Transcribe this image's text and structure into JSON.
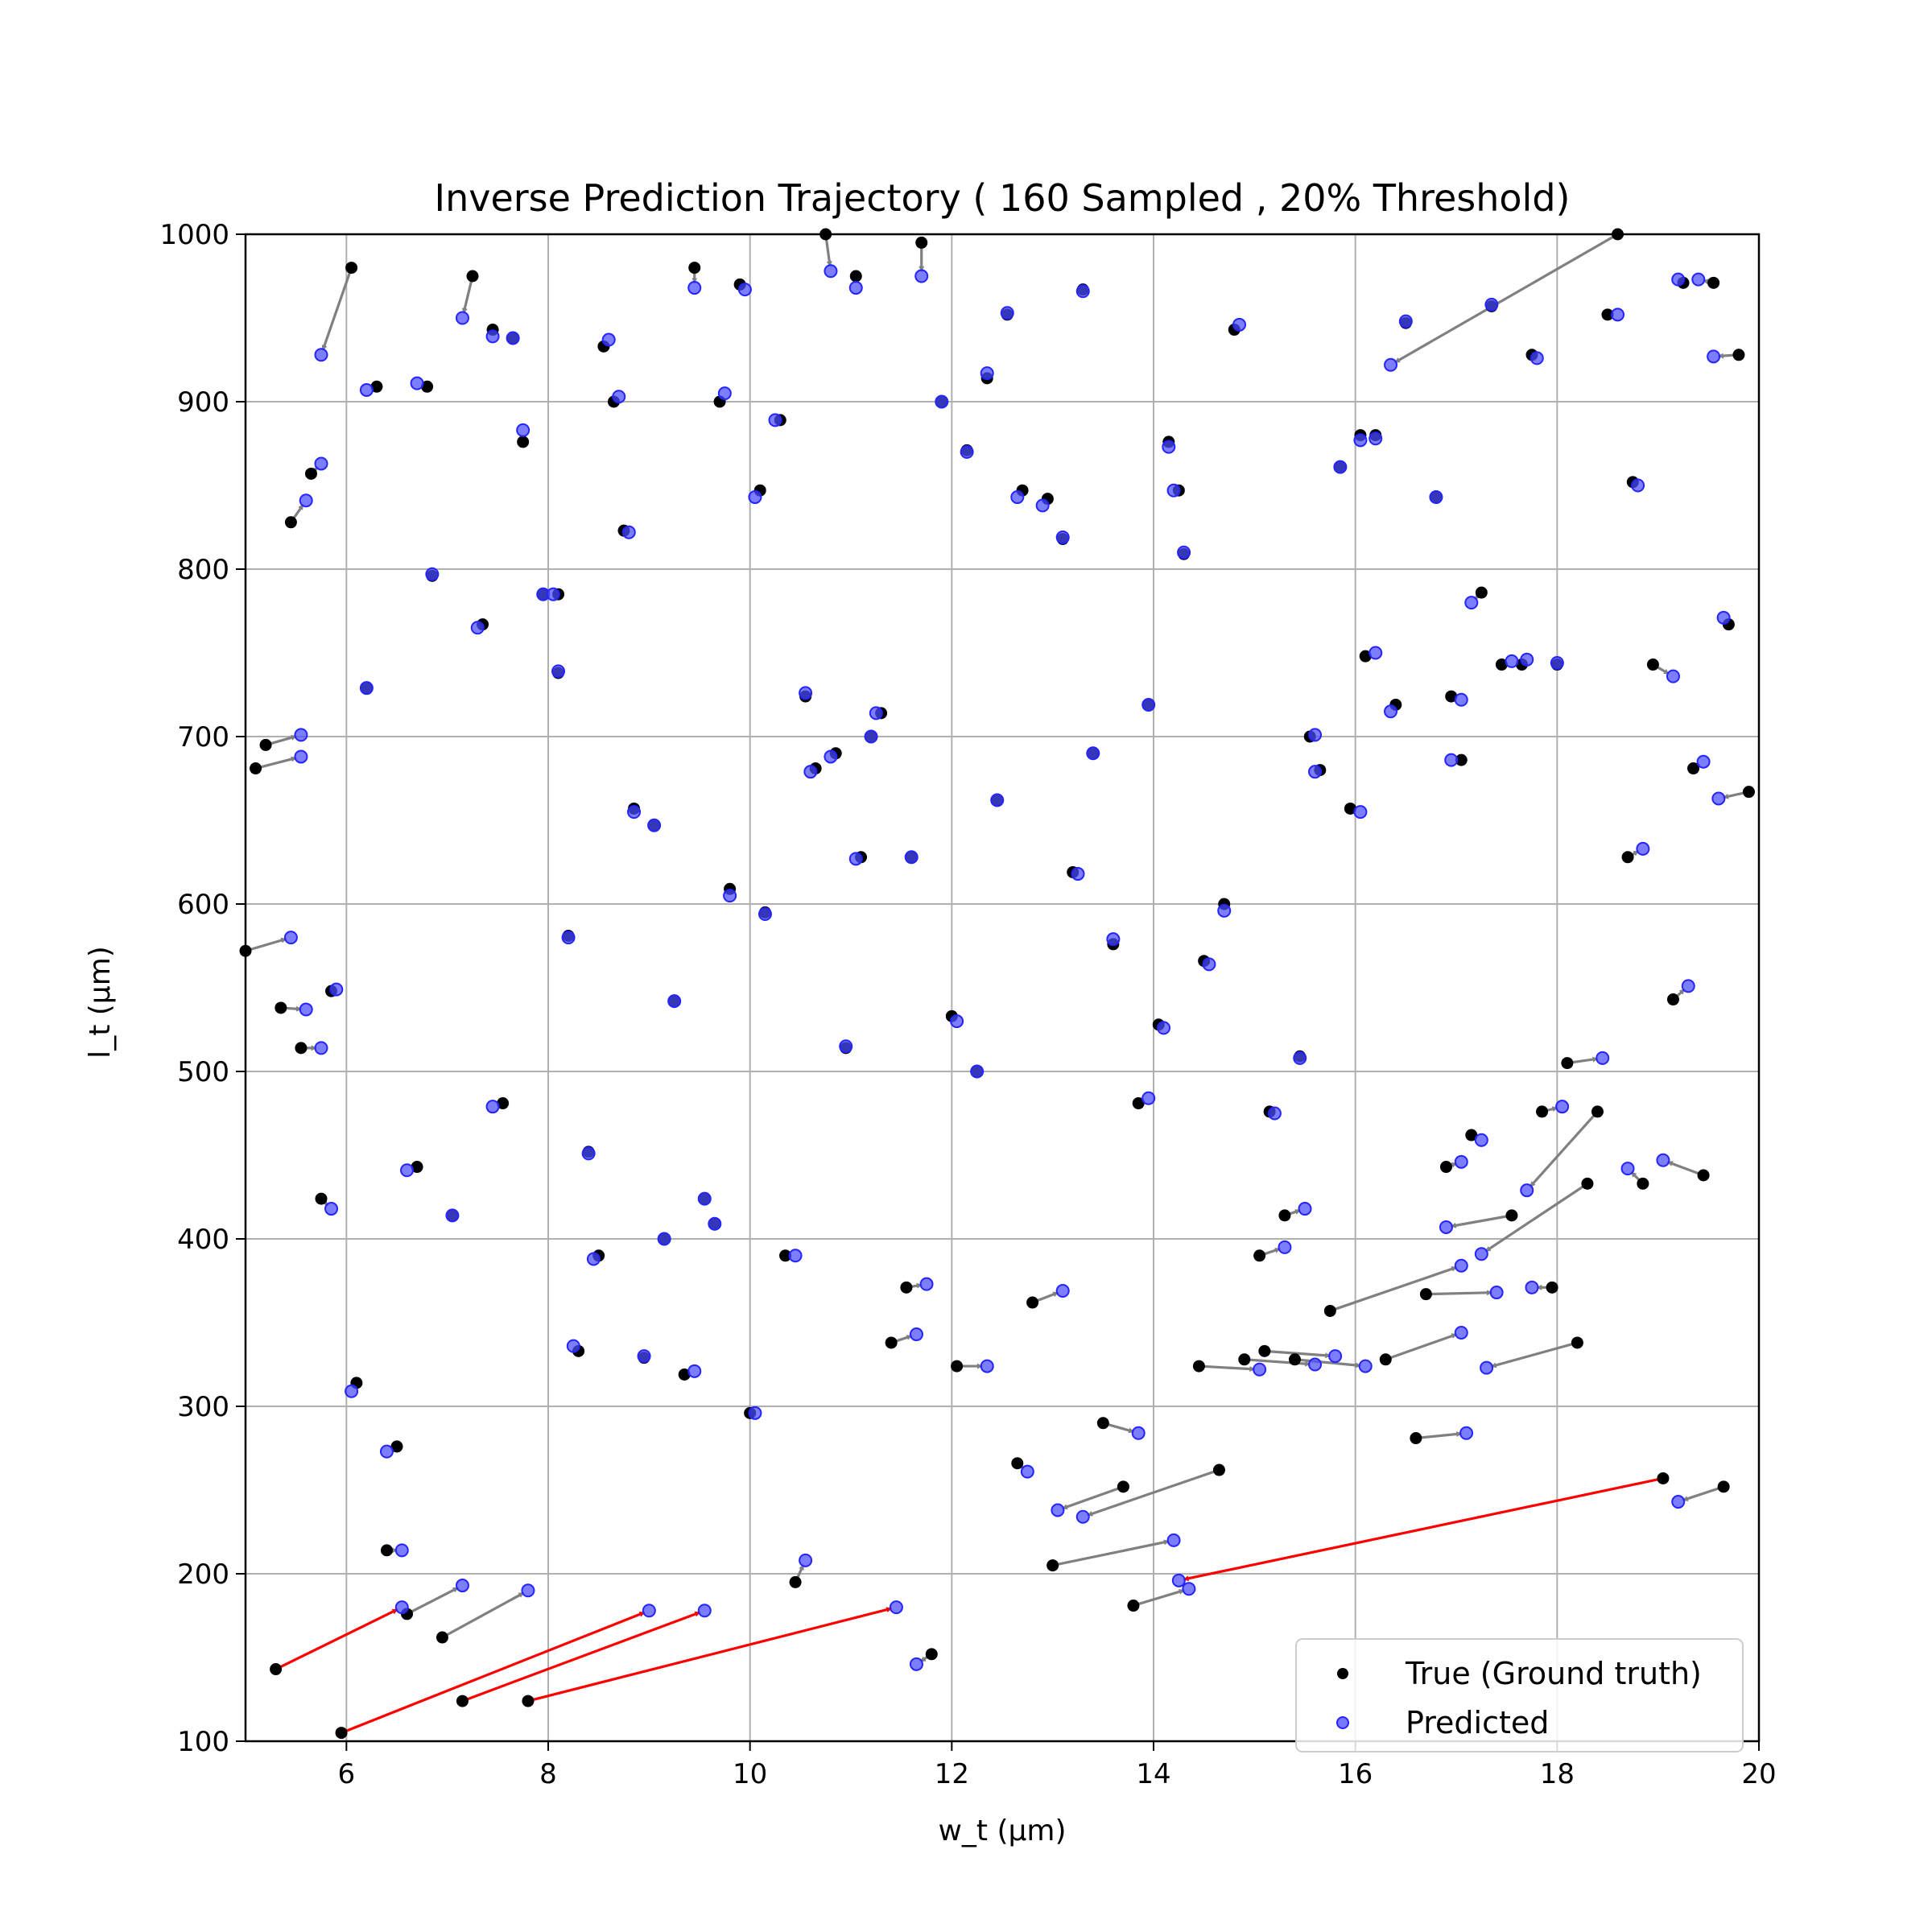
{
  "chart_data": {
    "type": "scatter",
    "title": "Inverse Prediction Trajectory ( 160 Sampled , 20% Threshold)",
    "xlabel": "w_t (µm)",
    "ylabel": "l_t (µm)",
    "xlim": [
      5,
      20
    ],
    "ylim": [
      100,
      1000
    ],
    "xticks": [
      6,
      8,
      10,
      12,
      14,
      16,
      18,
      20
    ],
    "yticks": [
      100,
      200,
      300,
      400,
      500,
      600,
      700,
      800,
      900,
      1000
    ],
    "grid": true,
    "legend_position": "lower-right",
    "legend": [
      {
        "label": "True (Ground truth)",
        "color": "#000000"
      },
      {
        "label": "Predicted",
        "color": "#4b4bff"
      }
    ],
    "colors": {
      "true": "#000000",
      "predicted": "#4b4bff",
      "arrow_normal": "#808080",
      "arrow_outlier": "#ff0000"
    },
    "pairs": [
      [
        6.05,
        980,
        5.75,
        928
      ],
      [
        7.25,
        975,
        7.15,
        950
      ],
      [
        9.45,
        980,
        9.45,
        968
      ],
      [
        10.75,
        1000,
        10.8,
        978
      ],
      [
        11.7,
        995,
        11.7,
        975
      ],
      [
        11.05,
        975,
        11.05,
        968
      ],
      [
        9.9,
        970,
        9.95,
        967
      ],
      [
        13.3,
        967,
        13.3,
        966
      ],
      [
        12.55,
        952,
        12.55,
        953
      ],
      [
        14.8,
        943,
        14.85,
        946
      ],
      [
        18.6,
        1000,
        16.35,
        922
      ],
      [
        17.35,
        957,
        17.35,
        958
      ],
      [
        16.5,
        947,
        16.5,
        948
      ],
      [
        18.5,
        952,
        18.6,
        952
      ],
      [
        19.25,
        971,
        19.2,
        973
      ],
      [
        19.55,
        971,
        19.4,
        973
      ],
      [
        19.8,
        928,
        19.55,
        927
      ],
      [
        17.75,
        928,
        17.8,
        926
      ],
      [
        6.3,
        909,
        6.2,
        907
      ],
      [
        6.8,
        909,
        6.7,
        911
      ],
      [
        7.45,
        943,
        7.45,
        939
      ],
      [
        7.65,
        938,
        7.65,
        938
      ],
      [
        8.55,
        933,
        8.6,
        937
      ],
      [
        8.65,
        900,
        8.7,
        903
      ],
      [
        9.7,
        900,
        9.75,
        905
      ],
      [
        10.3,
        889,
        10.25,
        889
      ],
      [
        11.9,
        900,
        11.9,
        900
      ],
      [
        12.35,
        914,
        12.35,
        917
      ],
      [
        7.75,
        876,
        7.75,
        883
      ],
      [
        5.65,
        857,
        5.75,
        863
      ],
      [
        5.45,
        828,
        5.6,
        841
      ],
      [
        10.1,
        847,
        10.05,
        843
      ],
      [
        8.75,
        823,
        8.8,
        822
      ],
      [
        12.15,
        871,
        12.15,
        870
      ],
      [
        12.7,
        847,
        12.65,
        843
      ],
      [
        12.95,
        842,
        12.9,
        838
      ],
      [
        13.1,
        818,
        13.1,
        819
      ],
      [
        14.15,
        876,
        14.15,
        873
      ],
      [
        14.25,
        847,
        14.2,
        847
      ],
      [
        14.3,
        809,
        14.3,
        810
      ],
      [
        16.05,
        880,
        16.05,
        877
      ],
      [
        16.2,
        880,
        16.2,
        878
      ],
      [
        15.85,
        861,
        15.85,
        861
      ],
      [
        16.8,
        843,
        16.8,
        843
      ],
      [
        18.75,
        852,
        18.8,
        850
      ],
      [
        6.85,
        796,
        6.85,
        797
      ],
      [
        7.35,
        767,
        7.3,
        765
      ],
      [
        7.95,
        785,
        7.95,
        785
      ],
      [
        8.1,
        785,
        8.05,
        785
      ],
      [
        8.1,
        738,
        8.1,
        739
      ],
      [
        6.2,
        729,
        6.2,
        729
      ],
      [
        5.2,
        695,
        5.55,
        701
      ],
      [
        5.1,
        681,
        5.55,
        688
      ],
      [
        10.55,
        724,
        10.55,
        726
      ],
      [
        10.65,
        681,
        10.6,
        679
      ],
      [
        10.85,
        690,
        10.8,
        688
      ],
      [
        11.3,
        714,
        11.25,
        714
      ],
      [
        11.2,
        700,
        11.2,
        700
      ],
      [
        13.95,
        719,
        13.95,
        719
      ],
      [
        13.4,
        690,
        13.4,
        690
      ],
      [
        12.45,
        662,
        12.45,
        662
      ],
      [
        8.85,
        657,
        8.85,
        655
      ],
      [
        9.05,
        647,
        9.05,
        647
      ],
      [
        11.1,
        628,
        11.05,
        627
      ],
      [
        11.6,
        628,
        11.6,
        628
      ],
      [
        9.8,
        609,
        9.8,
        605
      ],
      [
        10.15,
        595,
        10.15,
        594
      ],
      [
        13.2,
        619,
        13.25,
        618
      ],
      [
        14.7,
        600,
        14.7,
        596
      ],
      [
        13.6,
        576,
        13.6,
        579
      ],
      [
        14.5,
        566,
        14.55,
        564
      ],
      [
        8.2,
        581,
        8.2,
        580
      ],
      [
        5.0,
        572,
        5.45,
        580
      ],
      [
        5.85,
        548,
        5.9,
        549
      ],
      [
        5.35,
        538,
        5.6,
        537
      ],
      [
        5.55,
        514,
        5.75,
        514
      ],
      [
        9.25,
        542,
        9.25,
        542
      ],
      [
        10.95,
        514,
        10.95,
        515
      ],
      [
        12.0,
        533,
        12.05,
        530
      ],
      [
        12.25,
        500,
        12.25,
        500
      ],
      [
        14.05,
        528,
        14.1,
        526
      ],
      [
        15.45,
        509,
        15.45,
        508
      ],
      [
        15.55,
        700,
        15.6,
        701
      ],
      [
        15.65,
        680,
        15.6,
        679
      ],
      [
        15.95,
        657,
        16.05,
        655
      ],
      [
        16.1,
        748,
        16.2,
        750
      ],
      [
        16.4,
        719,
        16.35,
        715
      ],
      [
        16.95,
        724,
        17.05,
        722
      ],
      [
        17.05,
        686,
        16.95,
        686
      ],
      [
        17.25,
        786,
        17.15,
        780
      ],
      [
        17.45,
        743,
        17.55,
        745
      ],
      [
        17.65,
        743,
        17.7,
        746
      ],
      [
        18.0,
        743,
        18.0,
        744
      ],
      [
        18.95,
        743,
        19.15,
        736
      ],
      [
        19.7,
        767,
        19.65,
        771
      ],
      [
        19.35,
        681,
        19.45,
        685
      ],
      [
        19.9,
        667,
        19.6,
        663
      ],
      [
        18.7,
        628,
        18.85,
        633
      ],
      [
        19.15,
        543,
        19.3,
        551
      ],
      [
        18.1,
        505,
        18.45,
        508
      ],
      [
        7.55,
        481,
        7.45,
        479
      ],
      [
        8.4,
        452,
        8.4,
        451
      ],
      [
        6.7,
        443,
        6.6,
        441
      ],
      [
        5.75,
        424,
        5.85,
        418
      ],
      [
        7.05,
        414,
        7.05,
        414
      ],
      [
        9.55,
        424,
        9.55,
        424
      ],
      [
        9.65,
        409,
        9.65,
        409
      ],
      [
        8.5,
        390,
        8.45,
        388
      ],
      [
        9.15,
        400,
        9.15,
        400
      ],
      [
        10.35,
        390,
        10.45,
        390
      ],
      [
        13.85,
        481,
        13.95,
        484
      ],
      [
        15.15,
        476,
        15.2,
        475
      ],
      [
        17.15,
        462,
        17.25,
        459
      ],
      [
        16.9,
        443,
        17.05,
        446
      ],
      [
        17.85,
        476,
        18.05,
        479
      ],
      [
        18.4,
        476,
        17.7,
        429
      ],
      [
        18.85,
        433,
        18.7,
        442
      ],
      [
        19.45,
        438,
        19.05,
        447
      ],
      [
        17.55,
        414,
        16.9,
        407
      ],
      [
        18.3,
        433,
        17.25,
        391
      ],
      [
        15.3,
        414,
        15.5,
        418
      ],
      [
        15.05,
        390,
        15.3,
        395
      ],
      [
        15.75,
        357,
        17.05,
        384
      ],
      [
        16.7,
        367,
        17.4,
        368
      ],
      [
        17.95,
        371,
        17.75,
        371
      ],
      [
        11.55,
        371,
        11.75,
        373
      ],
      [
        12.8,
        362,
        13.1,
        369
      ],
      [
        11.4,
        338,
        11.65,
        343
      ],
      [
        8.3,
        333,
        8.25,
        336
      ],
      [
        8.95,
        329,
        8.95,
        330
      ],
      [
        9.35,
        319,
        9.45,
        321
      ],
      [
        10.0,
        296,
        10.05,
        296
      ],
      [
        12.05,
        324,
        12.35,
        324
      ],
      [
        14.45,
        324,
        15.05,
        322
      ],
      [
        14.9,
        328,
        15.6,
        325
      ],
      [
        15.1,
        333,
        15.8,
        330
      ],
      [
        15.4,
        328,
        16.1,
        324
      ],
      [
        16.3,
        328,
        17.05,
        344
      ],
      [
        18.2,
        338,
        17.3,
        323
      ],
      [
        6.1,
        314,
        6.05,
        309
      ],
      [
        13.5,
        290,
        13.85,
        284
      ],
      [
        16.6,
        281,
        17.1,
        284
      ],
      [
        6.5,
        276,
        6.4,
        273
      ],
      [
        12.65,
        266,
        12.75,
        261
      ],
      [
        13.7,
        252,
        13.05,
        238
      ],
      [
        14.65,
        262,
        13.3,
        234
      ],
      [
        19.65,
        252,
        19.2,
        243
      ],
      [
        6.4,
        214,
        6.55,
        214
      ],
      [
        10.45,
        195,
        10.55,
        208
      ],
      [
        13.0,
        205,
        14.2,
        220
      ],
      [
        13.8,
        181,
        14.35,
        191
      ],
      [
        6.6,
        176,
        7.15,
        193
      ],
      [
        6.95,
        162,
        7.8,
        190
      ],
      [
        11.8,
        152,
        11.65,
        146
      ]
    ],
    "outlier_pairs": [
      [
        5.3,
        143,
        6.55,
        180
      ],
      [
        5.95,
        105,
        9.0,
        178
      ],
      [
        7.15,
        124,
        9.55,
        178
      ],
      [
        7.8,
        124,
        11.45,
        180
      ],
      [
        19.05,
        257,
        14.25,
        196
      ]
    ]
  }
}
